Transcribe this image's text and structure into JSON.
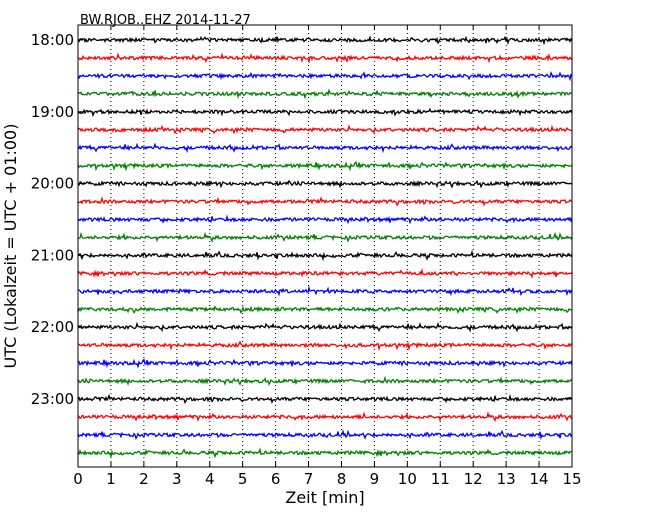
{
  "chart_data": {
    "type": "line",
    "title": "BW.RJOB..EHZ 2014-11-27",
    "xlabel": "Zeit  [min]",
    "ylabel": "UTC (Lokalzeit = UTC + 01:00)",
    "xlim": [
      0,
      15
    ],
    "x_ticks": [
      0,
      1,
      2,
      3,
      4,
      5,
      6,
      7,
      8,
      9,
      10,
      11,
      12,
      13,
      14,
      15
    ],
    "x_tick_labels": [
      "0",
      "1",
      "2",
      "3",
      "4",
      "5",
      "6",
      "7",
      "8",
      "9",
      "10",
      "11",
      "12",
      "13",
      "14",
      "15"
    ],
    "y_tick_labels": [
      "18:00",
      "19:00",
      "20:00",
      "21:00",
      "22:00",
      "23:00"
    ],
    "trace_start_times": [
      "18:00",
      "18:15",
      "18:30",
      "18:45",
      "19:00",
      "19:15",
      "19:30",
      "19:45",
      "20:00",
      "20:15",
      "20:30",
      "20:45",
      "21:00",
      "21:15",
      "21:30",
      "21:45",
      "22:00",
      "22:15",
      "22:30",
      "22:45",
      "23:00",
      "23:15",
      "23:30",
      "23:45"
    ],
    "trace_minutes": 15,
    "grid": "vertical dotted",
    "color_cycle": [
      "#000000",
      "#ff0000",
      "#0000ff",
      "#008000"
    ]
  }
}
